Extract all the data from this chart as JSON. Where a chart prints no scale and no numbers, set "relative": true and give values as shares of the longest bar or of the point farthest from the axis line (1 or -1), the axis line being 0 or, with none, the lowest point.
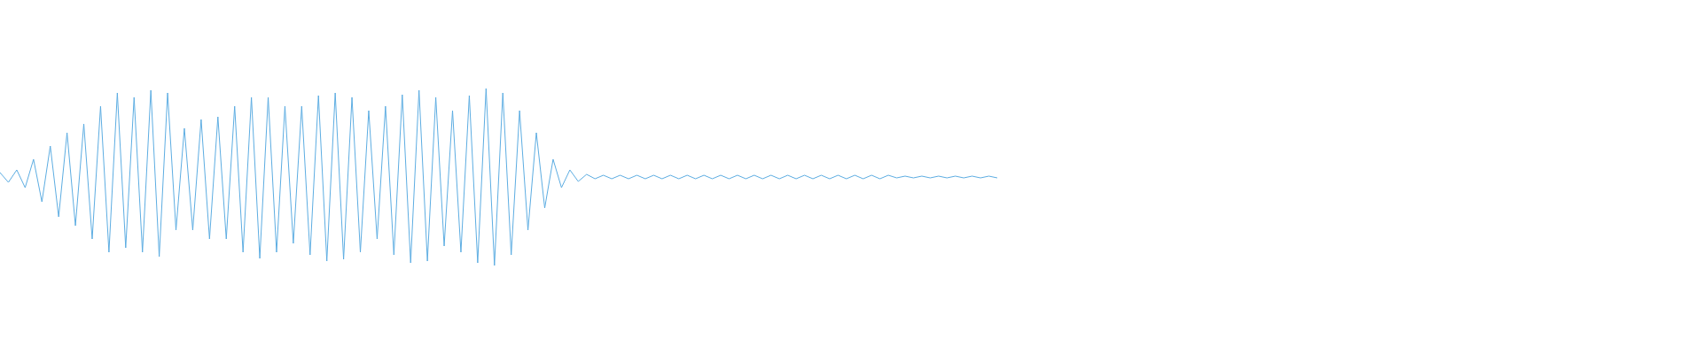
{
  "chart_data": {
    "type": "line",
    "relative": true,
    "legend": false,
    "marker": "none",
    "tick_labels": false,
    "categories": [
      null,
      null,
      null,
      null,
      null,
      null,
      null,
      null,
      null,
      null,
      null,
      null,
      null,
      null,
      null,
      null,
      null,
      null,
      null,
      null,
      null,
      null,
      null,
      null,
      null,
      null,
      null,
      null,
      null,
      null,
      null,
      null,
      null,
      null,
      null,
      null,
      null,
      null,
      null,
      null,
      null,
      null,
      null,
      null,
      null,
      null,
      null,
      null,
      null,
      null,
      null,
      null,
      null,
      null,
      null,
      null,
      null,
      null,
      null,
      null,
      null,
      null,
      null,
      null,
      null,
      null,
      null,
      null,
      null,
      null,
      null,
      null,
      null,
      null,
      null,
      null,
      null,
      null,
      null,
      null,
      null,
      null,
      null,
      null,
      null,
      null,
      null,
      null,
      null,
      null,
      null,
      null,
      null,
      null,
      null,
      null,
      null,
      null,
      null,
      null,
      null,
      null,
      null,
      null,
      null,
      null,
      null,
      null,
      null,
      null,
      null,
      null,
      null,
      null,
      null,
      null,
      null,
      null,
      null,
      null
    ],
    "series": [
      {
        "color": "#5dade2",
        "values": [
          0.525,
          0.47,
          0.54,
          0.44,
          0.6,
          0.36,
          0.675,
          0.275,
          0.75,
          0.225,
          0.8,
          0.15,
          0.9,
          0.075,
          0.975,
          0.1,
          0.95,
          0.075,
          0.99,
          0.05,
          0.975,
          0.2,
          0.775,
          0.2,
          0.825,
          0.15,
          0.84,
          0.15,
          0.9,
          0.075,
          0.95,
          0.04,
          0.95,
          0.075,
          0.9,
          0.125,
          0.9,
          0.06,
          0.96,
          0.025,
          0.975,
          0.035,
          0.95,
          0.075,
          0.875,
          0.15,
          0.9,
          0.06,
          0.965,
          0.015,
          0.99,
          0.025,
          0.95,
          0.11,
          0.875,
          0.075,
          0.96,
          0.015,
          1,
          0,
          0.975,
          0.06,
          0.875,
          0.2,
          0.75,
          0.325,
          0.6,
          0.44,
          0.54,
          0.475,
          0.515,
          0.49,
          0.51,
          0.49,
          0.51,
          0.49,
          0.51,
          0.49,
          0.51,
          0.49,
          0.51,
          0.49,
          0.51,
          0.49,
          0.51,
          0.49,
          0.51,
          0.49,
          0.51,
          0.49,
          0.51,
          0.49,
          0.51,
          0.49,
          0.51,
          0.49,
          0.51,
          0.49,
          0.51,
          0.49,
          0.51,
          0.49,
          0.51,
          0.49,
          0.51,
          0.49,
          0.51,
          0.495,
          0.505,
          0.495,
          0.505,
          0.495,
          0.505,
          0.495,
          0.505,
          0.495,
          0.505,
          0.495,
          0.505,
          0.495
        ]
      }
    ]
  }
}
